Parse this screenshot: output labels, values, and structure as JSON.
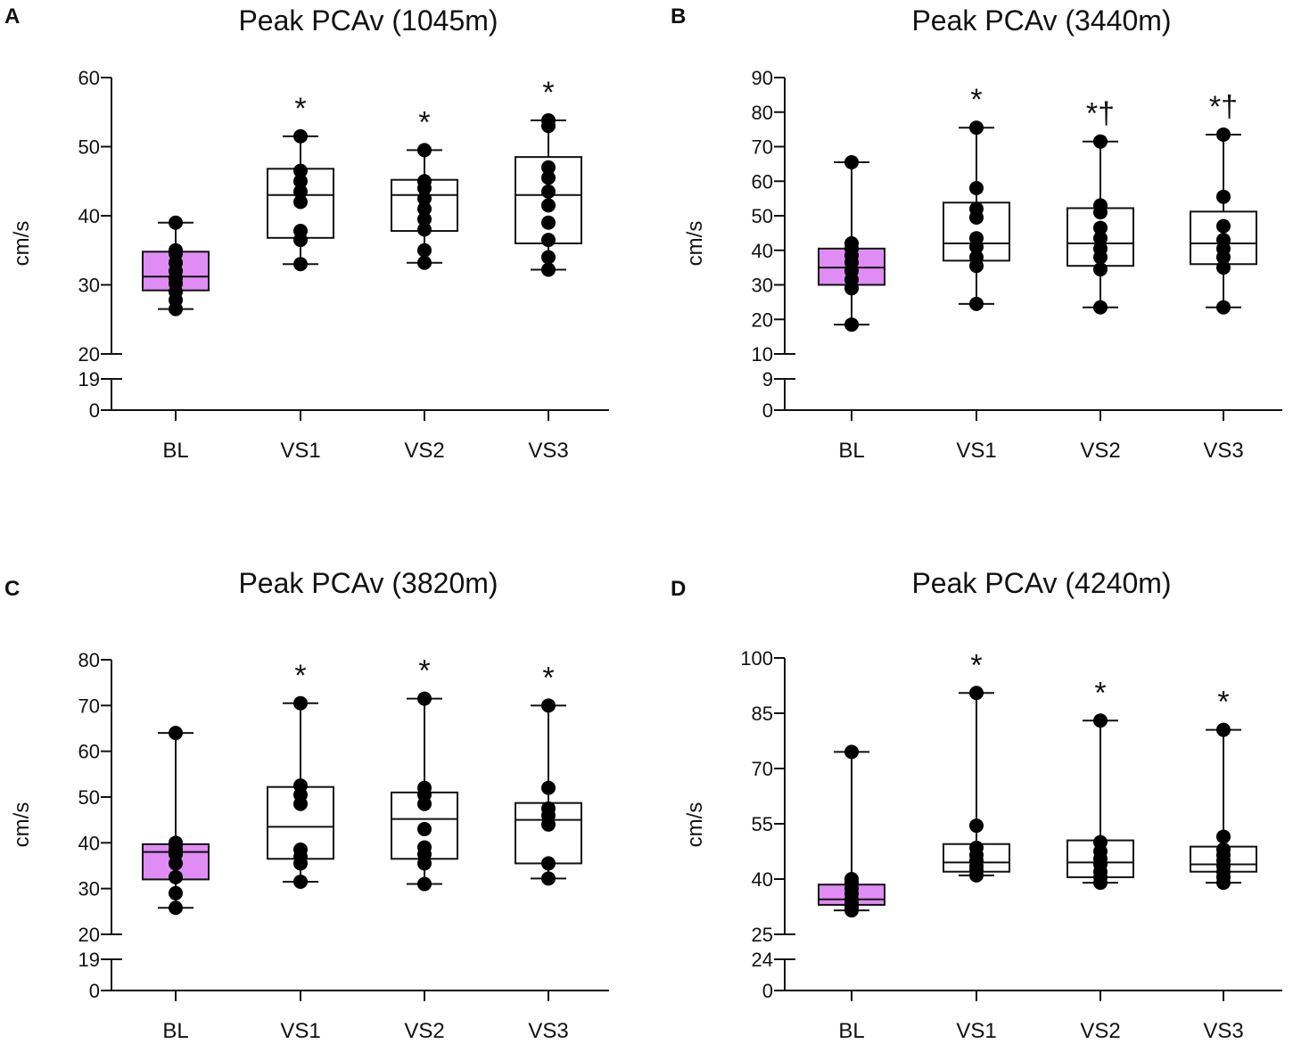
{
  "chart_data": [
    {
      "type": "box",
      "panel": "A",
      "title": "Peak PCAv (1045m)",
      "ylabel": "cm/s",
      "xlabel": "",
      "categories": [
        "BL",
        "VS1",
        "VS2",
        "VS3"
      ],
      "highlight_color": "#e08cf5",
      "axis_break": {
        "lower_ticks": [
          0,
          19
        ],
        "upper_ticks": [
          20,
          30,
          40,
          50,
          60
        ],
        "upper_range": [
          20,
          60
        ]
      },
      "boxes": [
        {
          "min": 26.5,
          "q1": 29.2,
          "median": 31.2,
          "q3": 34.8,
          "max": 39.0,
          "points": [
            26.5,
            27.8,
            29.0,
            30.2,
            31.0,
            32.0,
            33.2,
            34.5,
            35.0,
            39.0
          ],
          "annotation": ""
        },
        {
          "min": 33.0,
          "q1": 36.8,
          "median": 43.0,
          "q3": 46.8,
          "max": 51.5,
          "points": [
            33.0,
            36.5,
            37.8,
            42.0,
            43.5,
            45.0,
            46.5,
            51.5
          ],
          "annotation": "*"
        },
        {
          "min": 33.2,
          "q1": 37.8,
          "median": 43.0,
          "q3": 45.2,
          "max": 49.5,
          "points": [
            33.2,
            35.0,
            38.0,
            39.5,
            41.0,
            42.5,
            44.0,
            45.0,
            49.5
          ],
          "annotation": "*"
        },
        {
          "min": 32.2,
          "q1": 36.0,
          "median": 43.0,
          "q3": 48.5,
          "max": 53.8,
          "points": [
            32.2,
            34.0,
            36.5,
            39.0,
            41.5,
            43.5,
            45.5,
            47.0,
            53.0,
            53.8
          ],
          "annotation": "*"
        }
      ]
    },
    {
      "type": "box",
      "panel": "B",
      "title": "Peak PCAv (3440m)",
      "ylabel": "cm/s",
      "xlabel": "",
      "categories": [
        "BL",
        "VS1",
        "VS2",
        "VS3"
      ],
      "highlight_color": "#e08cf5",
      "axis_break": {
        "lower_ticks": [
          0,
          9
        ],
        "upper_ticks": [
          10,
          20,
          30,
          40,
          50,
          60,
          70,
          80,
          90
        ],
        "upper_range": [
          10,
          90
        ]
      },
      "boxes": [
        {
          "min": 18.5,
          "q1": 30.0,
          "median": 35.0,
          "q3": 40.5,
          "max": 65.5,
          "points": [
            18.5,
            29.0,
            31.5,
            34.0,
            36.5,
            38.5,
            40.5,
            42.0,
            65.5
          ],
          "annotation": ""
        },
        {
          "min": 24.5,
          "q1": 37.0,
          "median": 42.0,
          "q3": 53.8,
          "max": 75.5,
          "points": [
            24.5,
            35.5,
            38.0,
            41.0,
            43.5,
            49.5,
            52.0,
            58.0,
            75.5
          ],
          "annotation": "*"
        },
        {
          "min": 23.5,
          "q1": 35.5,
          "median": 42.0,
          "q3": 52.2,
          "max": 71.5,
          "points": [
            23.5,
            34.5,
            38.0,
            40.5,
            43.5,
            46.5,
            51.0,
            53.0,
            71.5
          ],
          "annotation": "*†"
        },
        {
          "min": 23.5,
          "q1": 36.0,
          "median": 42.0,
          "q3": 51.2,
          "max": 73.5,
          "points": [
            23.5,
            35.0,
            38.0,
            40.5,
            43.0,
            47.0,
            55.5,
            73.5
          ],
          "annotation": "*†"
        }
      ]
    },
    {
      "type": "box",
      "panel": "C",
      "title": "Peak PCAv (3820m)",
      "ylabel": "cm/s",
      "xlabel": "",
      "categories": [
        "BL",
        "VS1",
        "VS2",
        "VS3"
      ],
      "highlight_color": "#e08cf5",
      "axis_break": {
        "lower_ticks": [
          0,
          19
        ],
        "upper_ticks": [
          20,
          30,
          40,
          50,
          60,
          70,
          80
        ],
        "upper_range": [
          20,
          80
        ]
      },
      "boxes": [
        {
          "min": 25.8,
          "q1": 32.0,
          "median": 38.0,
          "q3": 39.7,
          "max": 64.0,
          "points": [
            25.8,
            29.0,
            32.5,
            35.5,
            37.5,
            38.5,
            39.5,
            40.0,
            64.0
          ],
          "annotation": ""
        },
        {
          "min": 31.5,
          "q1": 36.5,
          "median": 43.5,
          "q3": 52.2,
          "max": 70.5,
          "points": [
            31.5,
            35.5,
            37.0,
            38.5,
            48.5,
            50.5,
            52.5,
            70.5
          ],
          "annotation": "*"
        },
        {
          "min": 31.0,
          "q1": 36.5,
          "median": 45.2,
          "q3": 51.0,
          "max": 71.5,
          "points": [
            31.0,
            35.5,
            37.5,
            39.0,
            43.0,
            48.5,
            50.5,
            52.0,
            71.5
          ],
          "annotation": "*"
        },
        {
          "min": 32.2,
          "q1": 35.5,
          "median": 45.0,
          "q3": 48.7,
          "max": 70.0,
          "points": [
            32.2,
            35.5,
            44.0,
            46.0,
            47.5,
            52.0,
            70.0
          ],
          "annotation": "*"
        }
      ]
    },
    {
      "type": "box",
      "panel": "D",
      "title": "Peak PCAv (4240m)",
      "ylabel": "cm/s",
      "xlabel": "",
      "categories": [
        "BL",
        "VS1",
        "VS2",
        "VS3"
      ],
      "highlight_color": "#e08cf5",
      "axis_break": {
        "lower_ticks": [
          0,
          24
        ],
        "upper_ticks": [
          25,
          40,
          55,
          70,
          85,
          100
        ],
        "upper_range": [
          25,
          100
        ]
      },
      "boxes": [
        {
          "min": 31.5,
          "q1": 33.0,
          "median": 34.5,
          "q3": 38.5,
          "max": 74.5,
          "points": [
            31.5,
            32.5,
            33.5,
            34.5,
            36.0,
            37.5,
            39.0,
            40.0,
            74.5
          ],
          "annotation": ""
        },
        {
          "min": 41.0,
          "q1": 42.0,
          "median": 44.5,
          "q3": 49.5,
          "max": 90.5,
          "points": [
            41.0,
            42.5,
            43.5,
            45.0,
            46.5,
            48.5,
            54.5,
            90.5
          ],
          "annotation": "*"
        },
        {
          "min": 39.0,
          "q1": 40.5,
          "median": 44.5,
          "q3": 50.5,
          "max": 83.0,
          "points": [
            39.0,
            40.5,
            42.0,
            44.0,
            45.5,
            47.5,
            50.0,
            83.0
          ],
          "annotation": "*"
        },
        {
          "min": 39.0,
          "q1": 42.0,
          "median": 44.0,
          "q3": 48.8,
          "max": 80.5,
          "points": [
            39.0,
            40.5,
            42.0,
            43.5,
            45.0,
            46.5,
            48.0,
            51.5,
            80.5
          ],
          "annotation": "*"
        }
      ]
    }
  ]
}
